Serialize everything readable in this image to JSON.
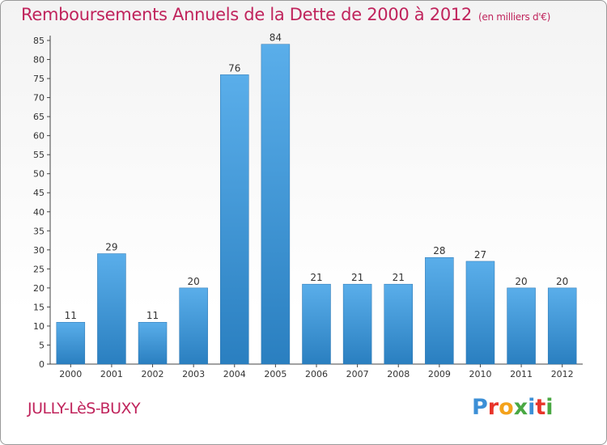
{
  "chart_data": {
    "type": "bar",
    "title": "Remboursements Annuels de la Dette de 2000 à 2012",
    "subtitle": "(en milliers d'€)",
    "categories": [
      "2000",
      "2001",
      "2002",
      "2003",
      "2004",
      "2005",
      "2006",
      "2007",
      "2008",
      "2009",
      "2010",
      "2011",
      "2012"
    ],
    "values": [
      11,
      29,
      11,
      20,
      76,
      84,
      21,
      21,
      21,
      28,
      27,
      20,
      20
    ],
    "ylim": [
      0,
      85
    ],
    "yticks": [
      0,
      5,
      10,
      15,
      20,
      25,
      30,
      35,
      40,
      45,
      50,
      55,
      60,
      65,
      70,
      75,
      80,
      85
    ],
    "grid": false,
    "bar_color": "#3f97d8"
  },
  "footer": {
    "commune": "JULLY-LèS-BUXY",
    "logo": "Proxiti"
  }
}
